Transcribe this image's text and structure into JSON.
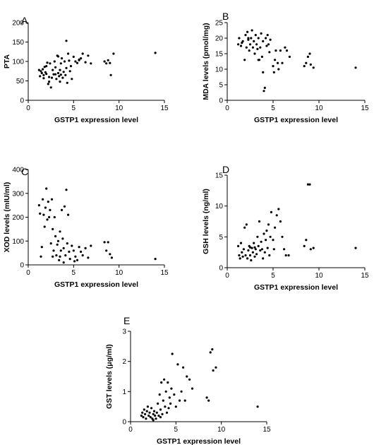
{
  "chart_data": [
    {
      "panel": "A",
      "type": "scatter",
      "xlabel": "GSTP1 expression level",
      "ylabel": "PTA",
      "xlim": [
        0,
        15
      ],
      "ylim": [
        0,
        200
      ],
      "xticks": [
        0,
        5,
        10,
        15
      ],
      "yticks": [
        0,
        50,
        100,
        150,
        200
      ],
      "grid": false,
      "points": [
        [
          1.2,
          78
        ],
        [
          1.3,
          62
        ],
        [
          1.4,
          75
        ],
        [
          1.5,
          70
        ],
        [
          1.6,
          80
        ],
        [
          1.7,
          65
        ],
        [
          1.8,
          86
        ],
        [
          1.9,
          72
        ],
        [
          2.0,
          88
        ],
        [
          2.1,
          97
        ],
        [
          2.2,
          42
        ],
        [
          2.3,
          60
        ],
        [
          2.4,
          95
        ],
        [
          2.5,
          33
        ],
        [
          2.6,
          58
        ],
        [
          2.7,
          78
        ],
        [
          2.8,
          67
        ],
        [
          2.9,
          100
        ],
        [
          3.0,
          85
        ],
        [
          3.1,
          55
        ],
        [
          3.2,
          115
        ],
        [
          3.3,
          70
        ],
        [
          3.4,
          62
        ],
        [
          3.5,
          48
        ],
        [
          3.6,
          95
        ],
        [
          3.7,
          108
        ],
        [
          3.8,
          58
        ],
        [
          3.9,
          73
        ],
        [
          4.0,
          100
        ],
        [
          4.1,
          65
        ],
        [
          4.2,
          83
        ],
        [
          4.3,
          45
        ],
        [
          4.4,
          120
        ],
        [
          4.5,
          102
        ],
        [
          4.6,
          75
        ],
        [
          4.7,
          88
        ],
        [
          4.8,
          55
        ],
        [
          5.0,
          112
        ],
        [
          5.2,
          100
        ],
        [
          5.4,
          96
        ],
        [
          5.6,
          103
        ],
        [
          5.8,
          108
        ],
        [
          6.0,
          120
        ],
        [
          6.3,
          98
        ],
        [
          6.6,
          115
        ],
        [
          6.9,
          95
        ],
        [
          8.4,
          100
        ],
        [
          8.6,
          95
        ],
        [
          8.8,
          103
        ],
        [
          9.0,
          96
        ],
        [
          9.1,
          65
        ],
        [
          9.4,
          120
        ],
        [
          2.0,
          68
        ],
        [
          2.3,
          48
        ],
        [
          3.0,
          67
        ],
        [
          3.3,
          113
        ],
        [
          3.6,
          66
        ],
        [
          4.2,
          153
        ],
        [
          1.7,
          57
        ],
        [
          14.0,
          122
        ],
        [
          5.6,
          105
        ],
        [
          3.5,
          78
        ]
      ]
    },
    {
      "panel": "B",
      "type": "scatter",
      "xlabel": "GSTP1 expression level",
      "ylabel": "MDA levels (pmol/mg)",
      "xlim": [
        0,
        15
      ],
      "ylim": [
        0,
        25
      ],
      "xticks": [
        0,
        5,
        10,
        15
      ],
      "yticks": [
        0,
        5,
        10,
        15,
        20,
        25
      ],
      "grid": false,
      "points": [
        [
          1.2,
          18
        ],
        [
          1.3,
          20
        ],
        [
          1.5,
          17.5
        ],
        [
          1.6,
          18.5
        ],
        [
          1.7,
          19
        ],
        [
          1.9,
          13
        ],
        [
          2.0,
          21
        ],
        [
          2.1,
          17
        ],
        [
          2.2,
          22
        ],
        [
          2.3,
          19.5
        ],
        [
          2.4,
          16
        ],
        [
          2.5,
          18
        ],
        [
          2.6,
          20
        ],
        [
          2.7,
          22.5
        ],
        [
          2.8,
          17
        ],
        [
          2.9,
          19
        ],
        [
          3.0,
          15
        ],
        [
          3.1,
          21
        ],
        [
          3.2,
          18
        ],
        [
          3.3,
          16.5
        ],
        [
          3.4,
          20
        ],
        [
          3.5,
          13
        ],
        [
          3.6,
          17
        ],
        [
          3.7,
          21.5
        ],
        [
          3.8,
          14
        ],
        [
          3.9,
          19
        ],
        [
          4.0,
          3
        ],
        [
          4.1,
          4
        ],
        [
          4.2,
          20
        ],
        [
          4.3,
          17.5
        ],
        [
          4.4,
          21
        ],
        [
          4.5,
          18
        ],
        [
          4.6,
          15.5
        ],
        [
          4.7,
          19.5
        ],
        [
          5.0,
          11
        ],
        [
          5.1,
          9
        ],
        [
          5.2,
          13
        ],
        [
          5.3,
          16
        ],
        [
          5.5,
          12
        ],
        [
          5.6,
          10
        ],
        [
          5.8,
          16
        ],
        [
          6.0,
          12
        ],
        [
          6.3,
          17
        ],
        [
          6.5,
          16
        ],
        [
          6.8,
          14
        ],
        [
          8.4,
          11
        ],
        [
          8.6,
          12
        ],
        [
          8.8,
          14
        ],
        [
          9.0,
          15
        ],
        [
          9.1,
          11.5
        ],
        [
          9.4,
          10.5
        ],
        [
          14.0,
          10.5
        ],
        [
          3.4,
          13
        ],
        [
          2.3,
          20
        ],
        [
          3.9,
          9
        ]
      ]
    },
    {
      "panel": "C",
      "type": "scatter",
      "xlabel": "GSTP1 expression level",
      "ylabel": "XOD levels (mIU/ml)",
      "xlim": [
        0,
        15
      ],
      "ylim": [
        0,
        400
      ],
      "xticks": [
        0,
        5,
        10,
        15
      ],
      "yticks": [
        0,
        100,
        200,
        300,
        400
      ],
      "grid": false,
      "points": [
        [
          1.2,
          250
        ],
        [
          1.3,
          215
        ],
        [
          1.4,
          35
        ],
        [
          1.5,
          75
        ],
        [
          1.6,
          275
        ],
        [
          1.7,
          210
        ],
        [
          1.8,
          160
        ],
        [
          1.9,
          240
        ],
        [
          2.0,
          320
        ],
        [
          2.1,
          190
        ],
        [
          2.2,
          265
        ],
        [
          2.3,
          200
        ],
        [
          2.4,
          230
        ],
        [
          2.5,
          90
        ],
        [
          2.6,
          275
        ],
        [
          2.7,
          150
        ],
        [
          2.8,
          60
        ],
        [
          2.9,
          200
        ],
        [
          3.0,
          120
        ],
        [
          3.1,
          40
        ],
        [
          3.2,
          85
        ],
        [
          3.3,
          100
        ],
        [
          3.4,
          20
        ],
        [
          3.5,
          140
        ],
        [
          3.6,
          60
        ],
        [
          3.7,
          230
        ],
        [
          3.8,
          110
        ],
        [
          3.9,
          70
        ],
        [
          4.0,
          245
        ],
        [
          4.1,
          40
        ],
        [
          4.2,
          315
        ],
        [
          4.3,
          90
        ],
        [
          4.4,
          210
        ],
        [
          4.5,
          55
        ],
        [
          4.6,
          25
        ],
        [
          4.8,
          80
        ],
        [
          5.0,
          60
        ],
        [
          5.2,
          35
        ],
        [
          5.4,
          20
        ],
        [
          5.6,
          75
        ],
        [
          5.8,
          55
        ],
        [
          6.0,
          40
        ],
        [
          6.3,
          70
        ],
        [
          6.6,
          30
        ],
        [
          6.9,
          80
        ],
        [
          8.4,
          95
        ],
        [
          8.6,
          60
        ],
        [
          8.8,
          95
        ],
        [
          9.0,
          45
        ],
        [
          9.2,
          30
        ],
        [
          14.0,
          25
        ],
        [
          3.5,
          35
        ],
        [
          2.7,
          35
        ],
        [
          3.9,
          10
        ],
        [
          5.1,
          15
        ]
      ]
    },
    {
      "panel": "D",
      "type": "scatter",
      "xlabel": "GSTP1 expression level",
      "ylabel": "GSH levels (ng/ml)",
      "xlim": [
        0,
        15
      ],
      "ylim": [
        0,
        15
      ],
      "xticks": [
        0,
        5,
        10,
        15
      ],
      "yticks": [
        0,
        5,
        10,
        15
      ],
      "grid": false,
      "points": [
        [
          1.2,
          3.5
        ],
        [
          1.3,
          2
        ],
        [
          1.4,
          1.5
        ],
        [
          1.5,
          4
        ],
        [
          1.6,
          2.5
        ],
        [
          1.7,
          1.8
        ],
        [
          1.8,
          3
        ],
        [
          1.9,
          6.5
        ],
        [
          2.0,
          2
        ],
        [
          2.1,
          7
        ],
        [
          2.2,
          1.5
        ],
        [
          2.3,
          2.8
        ],
        [
          2.4,
          3.5
        ],
        [
          2.5,
          2
        ],
        [
          2.6,
          1.2
        ],
        [
          2.7,
          3.2
        ],
        [
          2.8,
          2.5
        ],
        [
          2.9,
          4
        ],
        [
          3.0,
          1.8
        ],
        [
          3.1,
          3
        ],
        [
          3.2,
          2.2
        ],
        [
          3.3,
          5
        ],
        [
          3.4,
          3.5
        ],
        [
          3.5,
          7.5
        ],
        [
          3.6,
          2.8
        ],
        [
          3.7,
          4.2
        ],
        [
          3.8,
          3
        ],
        [
          3.9,
          1.5
        ],
        [
          4.0,
          5.5
        ],
        [
          4.1,
          2.5
        ],
        [
          4.2,
          4.5
        ],
        [
          4.3,
          6
        ],
        [
          4.4,
          3.2
        ],
        [
          4.5,
          7
        ],
        [
          4.6,
          2
        ],
        [
          4.7,
          5
        ],
        [
          4.8,
          9
        ],
        [
          5.0,
          4.5
        ],
        [
          5.1,
          3
        ],
        [
          5.2,
          6.5
        ],
        [
          5.4,
          8.5
        ],
        [
          5.6,
          9.5
        ],
        [
          5.8,
          7.5
        ],
        [
          6.0,
          5
        ],
        [
          6.2,
          3
        ],
        [
          6.4,
          2
        ],
        [
          6.7,
          2
        ],
        [
          8.4,
          3.5
        ],
        [
          8.6,
          4.5
        ],
        [
          8.8,
          13.5
        ],
        [
          9.0,
          13.5
        ],
        [
          9.1,
          3
        ],
        [
          9.4,
          3.2
        ],
        [
          14.0,
          3.2
        ],
        [
          3.0,
          3.3
        ],
        [
          2.5,
          3.3
        ]
      ]
    },
    {
      "panel": "E",
      "type": "scatter",
      "xlabel": "GSTP1 expression level",
      "ylabel": "GST levels (μg/ml)",
      "xlim": [
        0,
        15
      ],
      "ylim": [
        0,
        3
      ],
      "xticks": [
        0,
        5,
        10,
        15
      ],
      "yticks": [
        0,
        1,
        2,
        3
      ],
      "grid": false,
      "points": [
        [
          1.2,
          0.2
        ],
        [
          1.3,
          0.3
        ],
        [
          1.4,
          0.15
        ],
        [
          1.5,
          0.4
        ],
        [
          1.6,
          0.25
        ],
        [
          1.7,
          0.1
        ],
        [
          1.8,
          0.35
        ],
        [
          1.9,
          0.5
        ],
        [
          2.0,
          0.2
        ],
        [
          2.1,
          0.3
        ],
        [
          2.2,
          0.15
        ],
        [
          2.3,
          0.45
        ],
        [
          2.4,
          0.1
        ],
        [
          2.5,
          0.25
        ],
        [
          2.6,
          0.35
        ],
        [
          2.7,
          0.2
        ],
        [
          2.8,
          0.1
        ],
        [
          2.9,
          0.3
        ],
        [
          3.0,
          0.6
        ],
        [
          3.1,
          0.2
        ],
        [
          3.2,
          0.9
        ],
        [
          3.3,
          0.4
        ],
        [
          3.4,
          1.3
        ],
        [
          3.5,
          0.25
        ],
        [
          3.6,
          0.7
        ],
        [
          3.7,
          1.4
        ],
        [
          3.8,
          0.5
        ],
        [
          3.9,
          1.0
        ],
        [
          4.0,
          0.3
        ],
        [
          4.1,
          1.3
        ],
        [
          4.2,
          0.45
        ],
        [
          4.3,
          0.8
        ],
        [
          4.4,
          0.6
        ],
        [
          4.5,
          1.1
        ],
        [
          4.6,
          2.25
        ],
        [
          4.8,
          0.9
        ],
        [
          5.0,
          0.5
        ],
        [
          5.2,
          1.9
        ],
        [
          5.4,
          0.7
        ],
        [
          5.6,
          1.0
        ],
        [
          5.8,
          1.8
        ],
        [
          6.0,
          0.7
        ],
        [
          6.2,
          1.5
        ],
        [
          6.5,
          1.4
        ],
        [
          6.8,
          1.1
        ],
        [
          8.4,
          0.8
        ],
        [
          8.6,
          0.7
        ],
        [
          8.8,
          2.3
        ],
        [
          9.0,
          2.4
        ],
        [
          9.1,
          1.7
        ],
        [
          9.4,
          1.8
        ],
        [
          14.0,
          0.5
        ],
        [
          2.5,
          0.05
        ],
        [
          3.3,
          0.15
        ]
      ]
    }
  ]
}
